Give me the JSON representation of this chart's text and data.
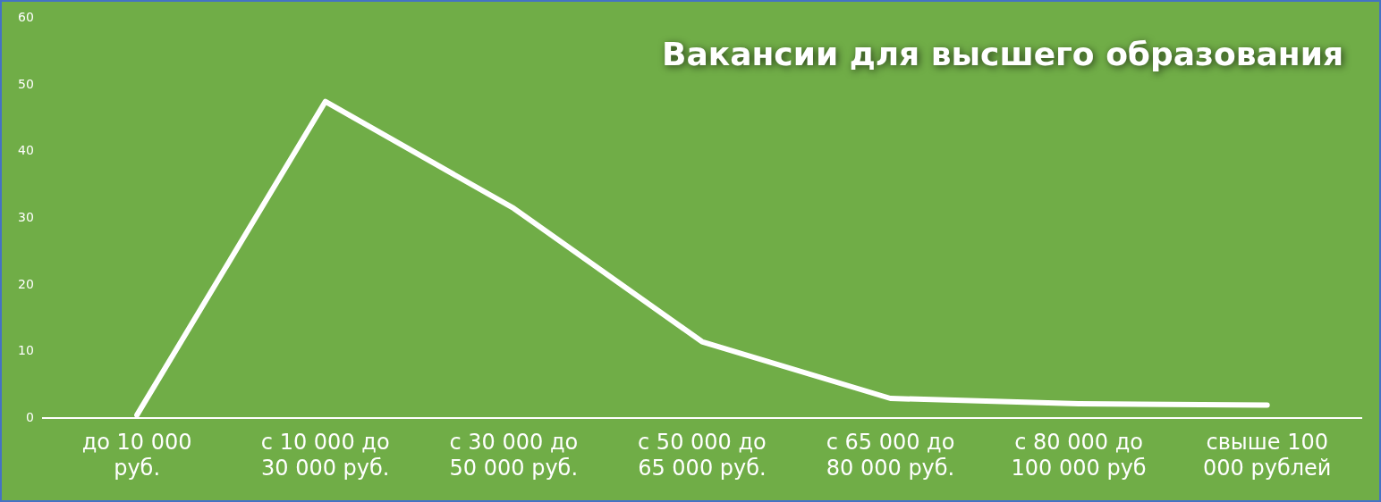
{
  "chart_data": {
    "type": "line",
    "title": "Вакансии для высшего образования",
    "categories": [
      "до 10 000 руб.",
      "с 10 000 до 30 000 руб.",
      "с 30 000 до 50 000 руб.",
      "с 50 000 до 65 000 руб.",
      "с 65 000 до 80 000 руб.",
      "с 80 000 до 100 000 руб",
      "свыше 100 000 рублей"
    ],
    "series": [
      {
        "color": "#ffffff",
        "values": [
          0.5,
          47.5,
          31.5,
          11.5,
          3,
          2.2,
          2
        ]
      }
    ],
    "ylim": [
      0,
      60
    ],
    "yticks": [
      0,
      10,
      20,
      30,
      40,
      50,
      60
    ],
    "grid": false,
    "legend": false,
    "marker": "none",
    "line_style": "solid"
  }
}
